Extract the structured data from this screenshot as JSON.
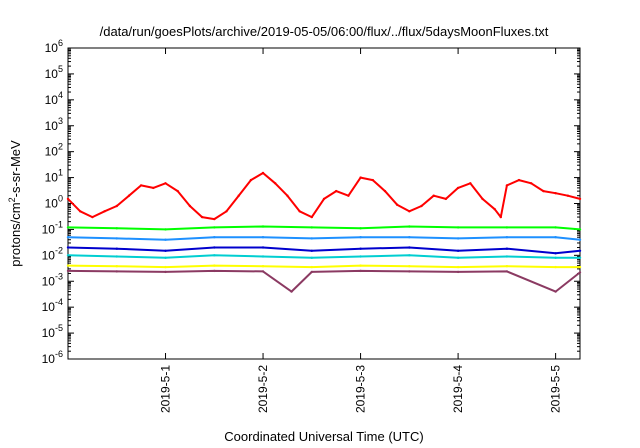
{
  "chart_data": {
    "type": "line",
    "title": "/data/run/goesPlots/archive/2019-05-05/06:00/flux/../flux/5daysMoonFluxes.txt",
    "xlabel": "Coordinated Universal Time (UTC)",
    "ylabel": "protons/cm²-s-sr-MeV",
    "ylabel_parts": {
      "a": "protons/cm",
      "sup": "2",
      "b": "-s-sr-MeV"
    },
    "y_scale": "log",
    "ylim": [
      1e-06,
      1000000.0
    ],
    "xlim": [
      "2019-04-30 00:00",
      "2019-05-05 06:00"
    ],
    "grid": false,
    "legend": "none",
    "x_ticks": [
      {
        "value": "2019-05-01",
        "label": "2019-5-1"
      },
      {
        "value": "2019-05-02",
        "label": "2019-5-2"
      },
      {
        "value": "2019-05-03",
        "label": "2019-5-3"
      },
      {
        "value": "2019-05-04",
        "label": "2019-5-4"
      },
      {
        "value": "2019-05-05",
        "label": "2019-5-5"
      }
    ],
    "y_ticks": [
      {
        "value": 1e-06,
        "base": "10",
        "exp": "-6"
      },
      {
        "value": 1e-05,
        "base": "10",
        "exp": "-5"
      },
      {
        "value": 0.0001,
        "base": "10",
        "exp": "-4"
      },
      {
        "value": 0.001,
        "base": "10",
        "exp": "-3"
      },
      {
        "value": 0.01,
        "base": "10",
        "exp": "-2"
      },
      {
        "value": 0.1,
        "base": "10",
        "exp": "-1"
      },
      {
        "value": 1,
        "base": "10",
        "exp": "0"
      },
      {
        "value": 10,
        "base": "10",
        "exp": "1"
      },
      {
        "value": 100,
        "base": "10",
        "exp": "2"
      },
      {
        "value": 1000,
        "base": "10",
        "exp": "3"
      },
      {
        "value": 10000,
        "base": "10",
        "exp": "4"
      },
      {
        "value": 100000,
        "base": "10",
        "exp": "5"
      },
      {
        "value": 1000000,
        "base": "10",
        "exp": "6"
      }
    ],
    "series": [
      {
        "color": "#ff0000",
        "x": [
          "2019-04-30 00:00",
          "2019-04-30 03:00",
          "2019-04-30 06:00",
          "2019-04-30 09:00",
          "2019-04-30 12:00",
          "2019-04-30 15:00",
          "2019-04-30 18:00",
          "2019-04-30 21:00",
          "2019-05-01 00:00",
          "2019-05-01 03:00",
          "2019-05-01 06:00",
          "2019-05-01 09:00",
          "2019-05-01 12:00",
          "2019-05-01 15:00",
          "2019-05-01 18:00",
          "2019-05-01 21:00",
          "2019-05-02 00:00",
          "2019-05-02 03:00",
          "2019-05-02 06:00",
          "2019-05-02 09:00",
          "2019-05-02 12:00",
          "2019-05-02 15:00",
          "2019-05-02 18:00",
          "2019-05-02 21:00",
          "2019-05-03 00:00",
          "2019-05-03 03:00",
          "2019-05-03 06:00",
          "2019-05-03 09:00",
          "2019-05-03 12:00",
          "2019-05-03 15:00",
          "2019-05-03 18:00",
          "2019-05-03 21:00",
          "2019-05-04 00:00",
          "2019-05-04 03:00",
          "2019-05-04 06:00",
          "2019-05-04 09:00",
          "2019-05-04 10:30",
          "2019-05-04 12:00",
          "2019-05-04 15:00",
          "2019-05-04 18:00",
          "2019-05-04 21:00",
          "2019-05-05 00:00",
          "2019-05-05 03:00",
          "2019-05-05 06:00"
        ],
        "y": [
          1.5,
          0.5,
          0.3,
          0.5,
          0.8,
          2,
          5,
          4,
          6,
          3,
          0.8,
          0.3,
          0.25,
          0.5,
          2,
          8,
          15,
          6,
          2,
          0.5,
          0.3,
          1.5,
          3,
          2,
          10,
          8,
          3,
          0.9,
          0.5,
          0.8,
          2,
          1.5,
          4,
          6,
          1.5,
          0.6,
          0.3,
          5,
          8,
          6,
          3,
          2.5,
          2,
          1.5
        ]
      },
      {
        "color": "#00ff00",
        "x": [
          "2019-04-30 00:00",
          "2019-04-30 12:00",
          "2019-05-01 00:00",
          "2019-05-01 12:00",
          "2019-05-02 00:00",
          "2019-05-02 12:00",
          "2019-05-03 00:00",
          "2019-05-03 12:00",
          "2019-05-04 00:00",
          "2019-05-04 12:00",
          "2019-05-05 00:00",
          "2019-05-05 06:00"
        ],
        "y": [
          0.12,
          0.11,
          0.1,
          0.12,
          0.13,
          0.12,
          0.11,
          0.13,
          0.12,
          0.12,
          0.12,
          0.1
        ]
      },
      {
        "color": "#1e90ff",
        "x": [
          "2019-04-30 00:00",
          "2019-04-30 12:00",
          "2019-05-01 00:00",
          "2019-05-01 12:00",
          "2019-05-02 00:00",
          "2019-05-02 12:00",
          "2019-05-03 00:00",
          "2019-05-03 12:00",
          "2019-05-04 00:00",
          "2019-05-04 12:00",
          "2019-05-05 00:00",
          "2019-05-05 06:00"
        ],
        "y": [
          0.05,
          0.045,
          0.04,
          0.05,
          0.05,
          0.045,
          0.05,
          0.05,
          0.045,
          0.05,
          0.05,
          0.04
        ]
      },
      {
        "color": "#0000cd",
        "x": [
          "2019-04-30 00:00",
          "2019-04-30 12:00",
          "2019-05-01 00:00",
          "2019-05-01 12:00",
          "2019-05-02 00:00",
          "2019-05-02 12:00",
          "2019-05-03 00:00",
          "2019-05-03 12:00",
          "2019-05-04 00:00",
          "2019-05-04 12:00",
          "2019-05-05 00:00",
          "2019-05-05 06:00"
        ],
        "y": [
          0.02,
          0.018,
          0.015,
          0.02,
          0.02,
          0.015,
          0.018,
          0.02,
          0.015,
          0.018,
          0.012,
          0.015
        ]
      },
      {
        "color": "#00ced1",
        "x": [
          "2019-04-30 00:00",
          "2019-04-30 12:00",
          "2019-05-01 00:00",
          "2019-05-01 12:00",
          "2019-05-02 00:00",
          "2019-05-02 12:00",
          "2019-05-03 00:00",
          "2019-05-03 12:00",
          "2019-05-04 00:00",
          "2019-05-04 12:00",
          "2019-05-05 00:00",
          "2019-05-05 06:00"
        ],
        "y": [
          0.01,
          0.009,
          0.008,
          0.01,
          0.009,
          0.008,
          0.009,
          0.01,
          0.008,
          0.009,
          0.008,
          0.008
        ]
      },
      {
        "color": "#ffff00",
        "x": [
          "2019-04-30 00:00",
          "2019-04-30 12:00",
          "2019-05-01 00:00",
          "2019-05-01 12:00",
          "2019-05-02 00:00",
          "2019-05-02 12:00",
          "2019-05-03 00:00",
          "2019-05-03 12:00",
          "2019-05-04 00:00",
          "2019-05-04 12:00",
          "2019-05-05 00:00",
          "2019-05-05 06:00"
        ],
        "y": [
          0.004,
          0.0038,
          0.0035,
          0.004,
          0.0038,
          0.0035,
          0.004,
          0.0038,
          0.0035,
          0.0038,
          0.0035,
          0.0035
        ]
      },
      {
        "color": "#8b3a62",
        "x": [
          "2019-04-30 00:00",
          "2019-04-30 12:00",
          "2019-05-01 00:00",
          "2019-05-01 12:00",
          "2019-05-02 00:00",
          "2019-05-02 07:00",
          "2019-05-02 12:00",
          "2019-05-03 00:00",
          "2019-05-03 12:00",
          "2019-05-04 00:00",
          "2019-05-04 12:00",
          "2019-05-05 00:00",
          "2019-05-05 06:00"
        ],
        "y": [
          0.0025,
          0.0024,
          0.0023,
          0.0025,
          0.0024,
          0.0004,
          0.0023,
          0.0025,
          0.0024,
          0.0023,
          0.0024,
          0.0004,
          0.0022
        ]
      }
    ]
  }
}
